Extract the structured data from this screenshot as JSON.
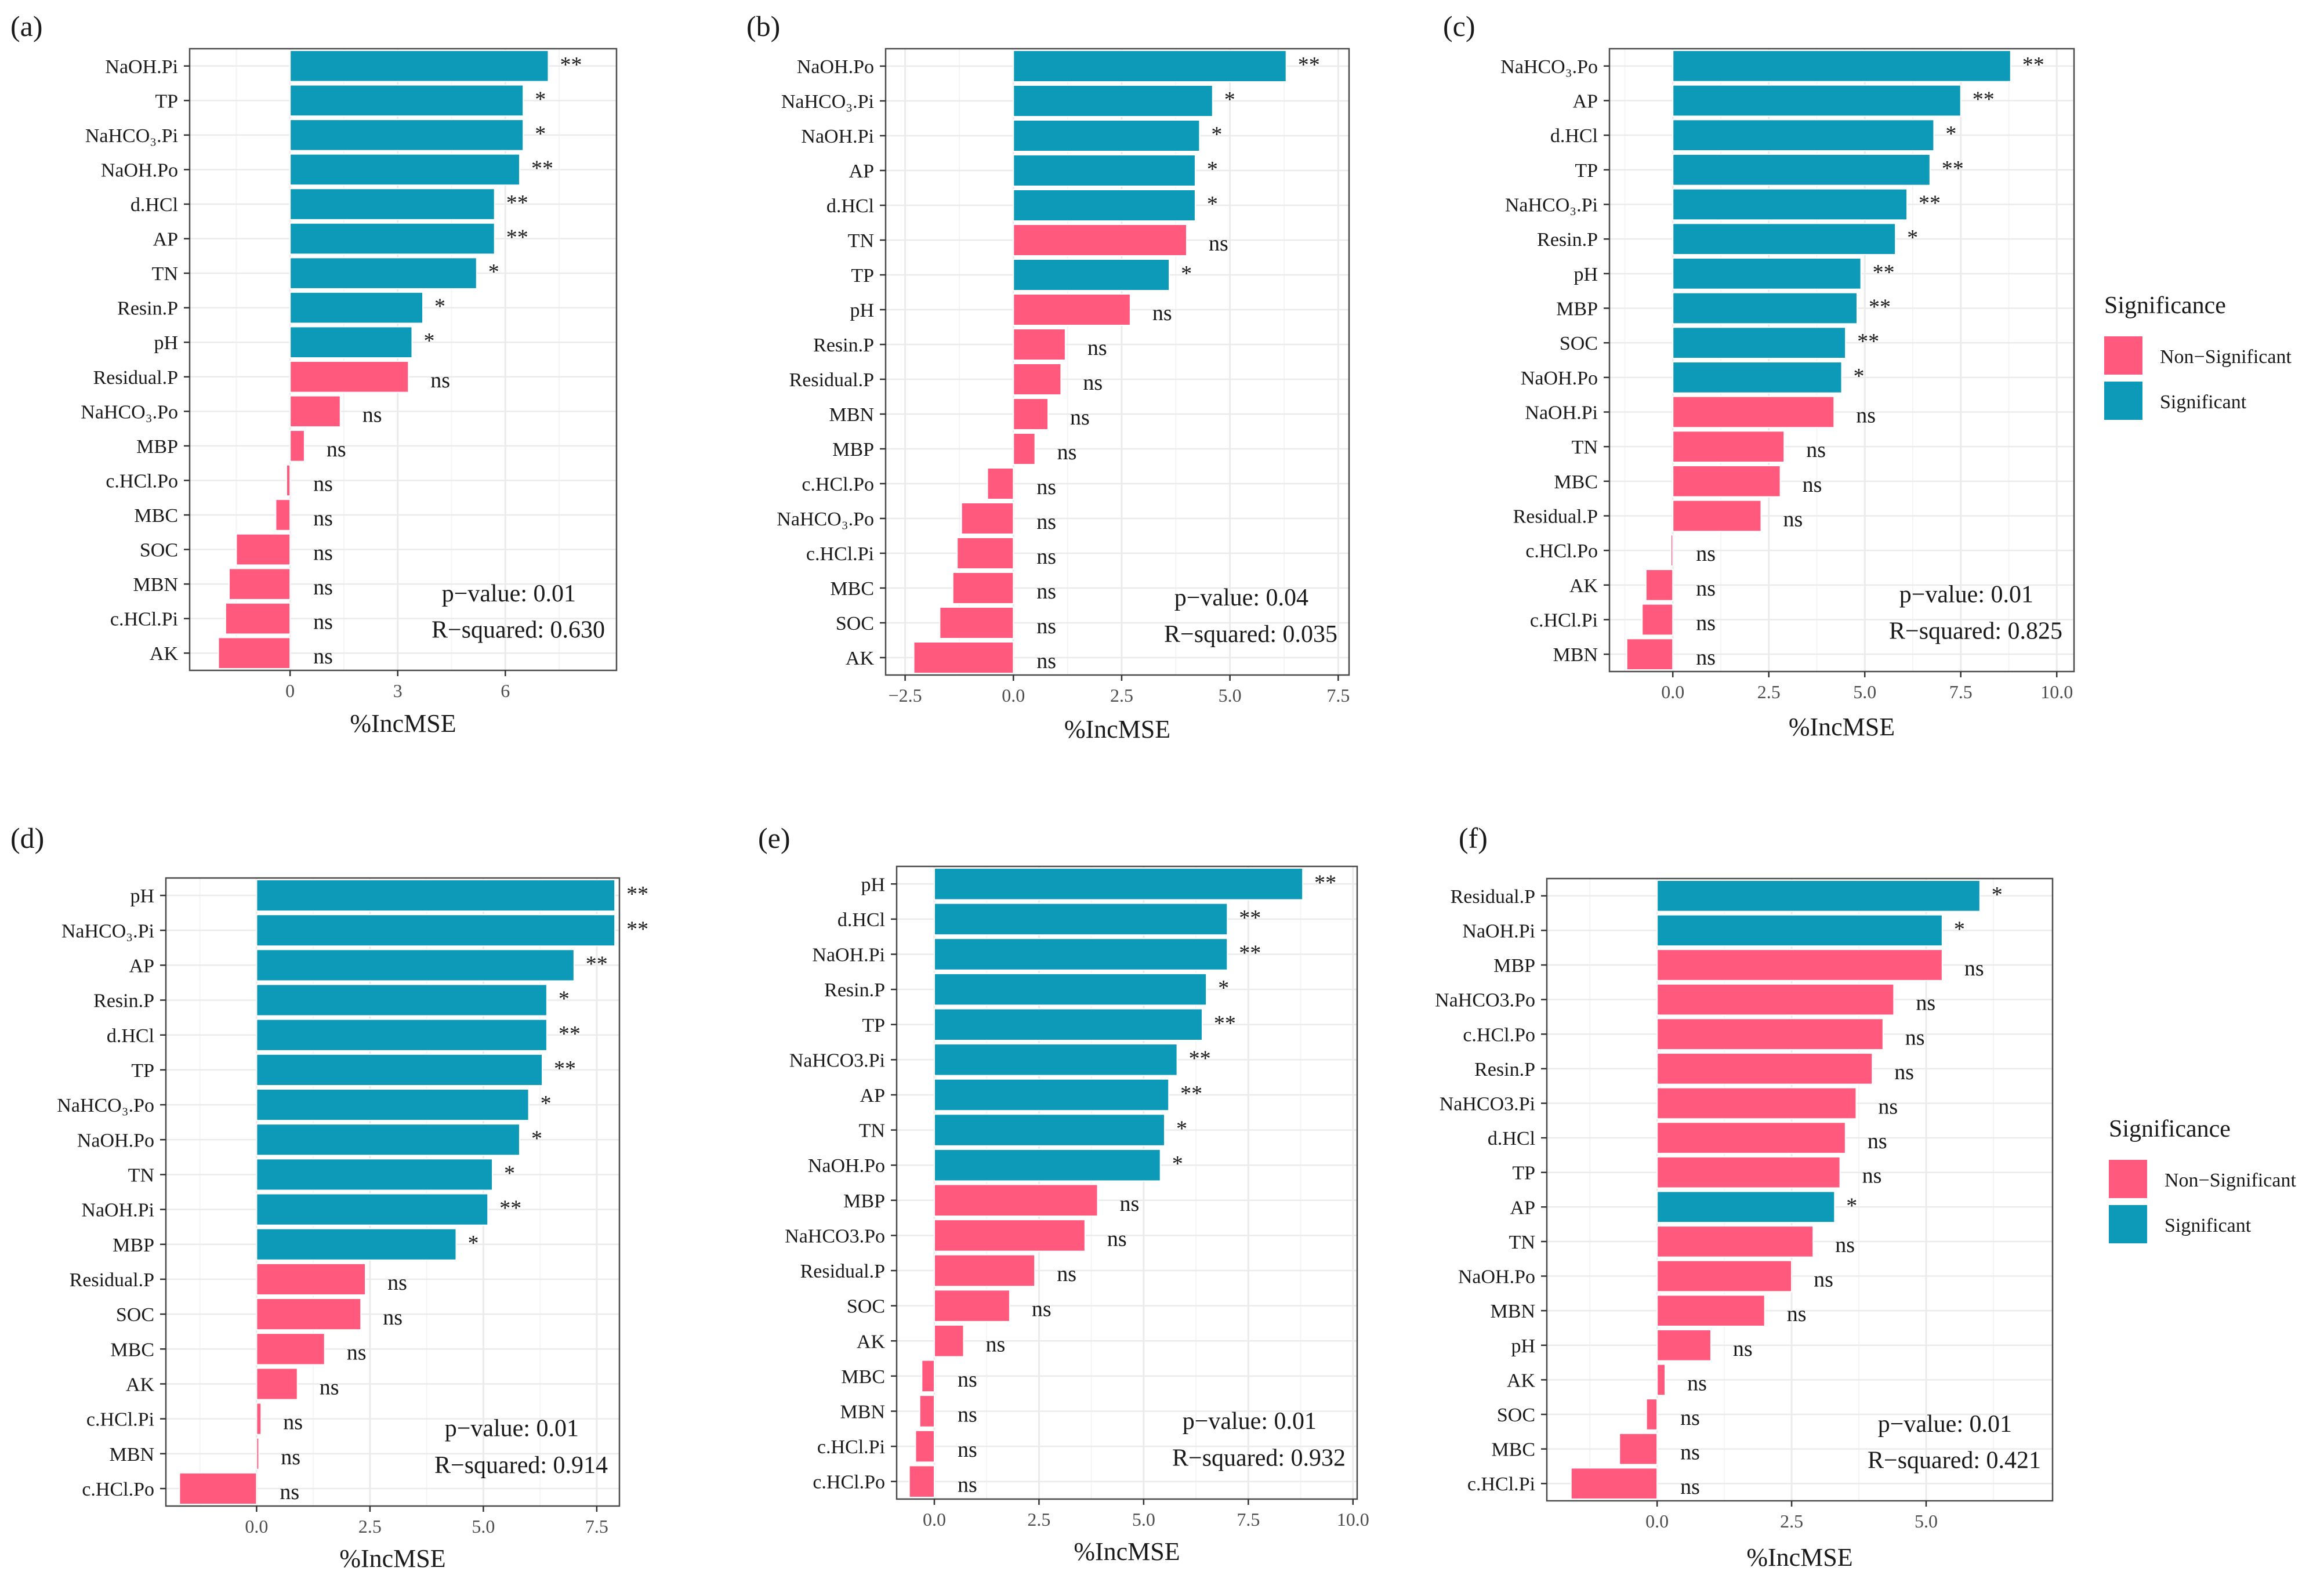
{
  "colors": {
    "significant": "#0c9ab8",
    "non_significant": "#ff5a7e",
    "grid": "#ebebeb",
    "panel_border": "#4a4a4a"
  },
  "legend": {
    "title": "Significance",
    "items": [
      {
        "label": "Non−Significant",
        "color": "#ff5a7e"
      },
      {
        "label": "Significant",
        "color": "#0c9ab8"
      }
    ]
  },
  "chart_data": [
    {
      "type": "bar",
      "panel": "(a)",
      "xlabel": "%IncMSE",
      "xlim": [
        -2.8,
        9.1
      ],
      "ticks": [
        0,
        3,
        6
      ],
      "tick_labels": [
        "0",
        "3",
        "6"
      ],
      "p_value": "p−value: 0.01",
      "r_squared": "R−squared: 0.630",
      "categories": [
        "NaOH.Pi",
        "TP",
        "NaHCO₃.Pi",
        "NaOH.Po",
        "d.HCl",
        "AP",
        "TN",
        "Resin.P",
        "pH",
        "Residual.P",
        "NaHCO₃.Po",
        "MBP",
        "c.HCl.Po",
        "MBC",
        "SOC",
        "MBN",
        "c.HCl.Pi",
        "AK"
      ],
      "values": [
        7.2,
        6.5,
        6.5,
        6.4,
        5.7,
        5.7,
        5.2,
        3.7,
        3.4,
        3.3,
        1.4,
        0.4,
        -0.1,
        -0.4,
        -1.5,
        -1.7,
        -1.8,
        -2.0
      ],
      "significance": [
        "**",
        "*",
        "*",
        "**",
        "**",
        "**",
        "*",
        "*",
        "*",
        "ns",
        "ns",
        "ns",
        "ns",
        "ns",
        "ns",
        "ns",
        "ns",
        "ns"
      ]
    },
    {
      "type": "bar",
      "panel": "(b)",
      "xlabel": "%IncMSE",
      "xlim": [
        -2.95,
        7.75
      ],
      "ticks": [
        -2.5,
        0,
        2.5,
        5,
        7.5
      ],
      "tick_labels": [
        "−2.5",
        "0.0",
        "2.5",
        "5.0",
        "7.5"
      ],
      "p_value": "p−value: 0.04",
      "r_squared": "R−squared: 0.035",
      "categories": [
        "NaOH.Po",
        "NaHCO₃.Pi",
        "NaOH.Pi",
        "AP",
        "d.HCl",
        "TN",
        "TP",
        "pH",
        "Resin.P",
        "Residual.P",
        "MBN",
        "MBP",
        "c.HCl.Po",
        "NaHCO₃.Po",
        "c.HCl.Pi",
        "MBC",
        "SOC",
        "AK"
      ],
      "values": [
        6.3,
        4.6,
        4.3,
        4.2,
        4.2,
        4.0,
        3.6,
        2.7,
        1.2,
        1.1,
        0.8,
        0.5,
        -0.6,
        -1.2,
        -1.3,
        -1.4,
        -1.7,
        -2.3
      ],
      "significance": [
        "**",
        "*",
        "*",
        "*",
        "*",
        "ns",
        "*",
        "ns",
        "ns",
        "ns",
        "ns",
        "ns",
        "ns",
        "ns",
        "ns",
        "ns",
        "ns",
        "ns"
      ]
    },
    {
      "type": "bar",
      "panel": "(c)",
      "xlabel": "%IncMSE",
      "xlim": [
        -1.65,
        10.45
      ],
      "ticks": [
        0,
        2.5,
        5,
        7.5,
        10
      ],
      "tick_labels": [
        "0.0",
        "2.5",
        "5.0",
        "7.5",
        "10.0"
      ],
      "p_value": "p−value: 0.01",
      "r_squared": "R−squared: 0.825",
      "categories": [
        "NaHCO₃.Po",
        "AP",
        "d.HCl",
        "TP",
        "NaHCO₃.Pi",
        "Resin.P",
        "pH",
        "MBP",
        "SOC",
        "NaOH.Po",
        "NaOH.Pi",
        "TN",
        "MBC",
        "Residual.P",
        "c.HCl.Po",
        "AK",
        "c.HCl.Pi",
        "MBN"
      ],
      "values": [
        8.8,
        7.5,
        6.8,
        6.7,
        6.1,
        5.8,
        4.9,
        4.8,
        4.5,
        4.4,
        4.2,
        2.9,
        2.8,
        2.3,
        -0.05,
        -0.7,
        -0.8,
        -1.2
      ],
      "significance": [
        "**",
        "**",
        "*",
        "**",
        "**",
        "*",
        "**",
        "**",
        "**",
        "*",
        "ns",
        "ns",
        "ns",
        "ns",
        "ns",
        "ns",
        "ns",
        "ns"
      ]
    },
    {
      "type": "bar",
      "panel": "(d)",
      "xlabel": "%IncMSE",
      "xlim": [
        -2.0,
        8.0
      ],
      "ticks": [
        0,
        2.5,
        5,
        7.5
      ],
      "tick_labels": [
        "0.0",
        "2.5",
        "5.0",
        "7.5"
      ],
      "p_value": "p−value: 0.01",
      "r_squared": "R−squared: 0.914",
      "categories": [
        "pH",
        "NaHCO₃.Pi",
        "AP",
        "Resin.P",
        "d.HCl",
        "TP",
        "NaHCO₃.Po",
        "NaOH.Po",
        "TN",
        "NaOH.Pi",
        "MBP",
        "Residual.P",
        "SOC",
        "MBC",
        "AK",
        "c.HCl.Pi",
        "MBN",
        "c.HCl.Po"
      ],
      "values": [
        7.9,
        7.9,
        7.0,
        6.4,
        6.4,
        6.3,
        6.0,
        5.8,
        5.2,
        5.1,
        4.4,
        2.4,
        2.3,
        1.5,
        0.9,
        0.1,
        0.05,
        -1.7
      ],
      "significance": [
        "**",
        "**",
        "**",
        "*",
        "**",
        "**",
        "*",
        "*",
        "*",
        "**",
        "*",
        "ns",
        "ns",
        "ns",
        "ns",
        "ns",
        "ns",
        "ns"
      ]
    },
    {
      "type": "bar",
      "panel": "(e)",
      "xlabel": "%IncMSE",
      "xlim": [
        -0.9,
        10.1
      ],
      "ticks": [
        0,
        2.5,
        5,
        7.5,
        10
      ],
      "tick_labels": [
        "0.0",
        "2.5",
        "5.0",
        "7.5",
        "10.0"
      ],
      "p_value": "p−value: 0.01",
      "r_squared": "R−squared: 0.932",
      "categories": [
        "pH",
        "d.HCl",
        "NaOH.Pi",
        "Resin.P",
        "TP",
        "NaHCO3.Pi",
        "AP",
        "TN",
        "NaOH.Po",
        "MBP",
        "NaHCO3.Po",
        "Residual.P",
        "SOC",
        "AK",
        "MBC",
        "MBN",
        "c.HCl.Pi",
        "c.HCl.Po"
      ],
      "values": [
        8.8,
        7.0,
        7.0,
        6.5,
        6.4,
        5.8,
        5.6,
        5.5,
        5.4,
        3.9,
        3.6,
        2.4,
        1.8,
        0.7,
        -0.3,
        -0.35,
        -0.45,
        -0.6
      ],
      "significance": [
        "**",
        "**",
        "**",
        "*",
        "**",
        "**",
        "**",
        "*",
        "*",
        "ns",
        "ns",
        "ns",
        "ns",
        "ns",
        "ns",
        "ns",
        "ns",
        "ns"
      ]
    },
    {
      "type": "bar",
      "panel": "(f)",
      "xlabel": "%IncMSE",
      "xlim": [
        -2.05,
        7.35
      ],
      "ticks": [
        0,
        2.5,
        5
      ],
      "tick_labels": [
        "0.0",
        "2.5",
        "5.0"
      ],
      "p_value": "p−value: 0.01",
      "r_squared": "R−squared: 0.421",
      "categories": [
        "Residual.P",
        "NaOH.Pi",
        "MBP",
        "NaHCO3.Po",
        "c.HCl.Po",
        "Resin.P",
        "NaHCO3.Pi",
        "d.HCl",
        "TP",
        "AP",
        "TN",
        "NaOH.Po",
        "MBN",
        "pH",
        "AK",
        "SOC",
        "MBC",
        "c.HCl.Pi"
      ],
      "values": [
        6.0,
        5.3,
        5.3,
        4.4,
        4.2,
        4.0,
        3.7,
        3.5,
        3.4,
        3.3,
        2.9,
        2.5,
        2.0,
        1.0,
        0.15,
        -0.2,
        -0.7,
        -1.6
      ],
      "significance": [
        "*",
        "*",
        "ns",
        "ns",
        "ns",
        "ns",
        "ns",
        "ns",
        "ns",
        "*",
        "ns",
        "ns",
        "ns",
        "ns",
        "ns",
        "ns",
        "ns",
        "ns"
      ]
    }
  ]
}
